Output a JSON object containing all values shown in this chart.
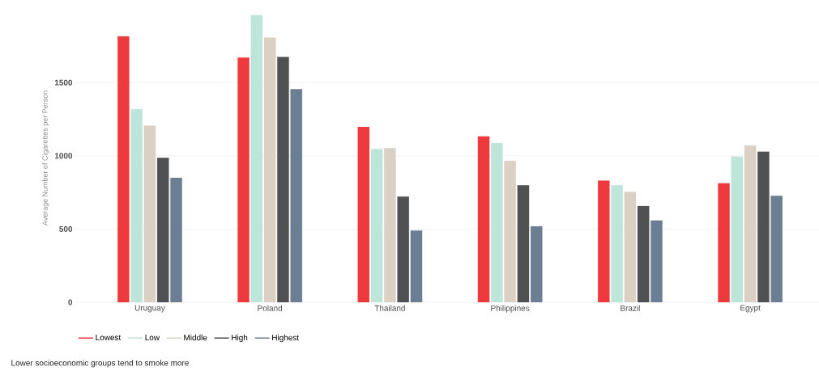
{
  "chart_data": {
    "type": "bar",
    "ylabel": "Average Number of Cigarettes per Person",
    "categories": [
      "Uruguay",
      "Poland",
      "Thailand",
      "Philippines",
      "Brazil",
      "Egypt"
    ],
    "series": [
      {
        "name": "Lowest",
        "color": "#ef3a3d",
        "values": [
          1815,
          1671,
          1197,
          1133,
          830,
          812
        ]
      },
      {
        "name": "Low",
        "color": "#bde5da",
        "values": [
          1319,
          1960,
          1047,
          1087,
          799,
          995
        ]
      },
      {
        "name": "Middle",
        "color": "#dad0c3",
        "values": [
          1205,
          1807,
          1052,
          966,
          753,
          1071
        ]
      },
      {
        "name": "High",
        "color": "#4f5153",
        "values": [
          986,
          1675,
          722,
          799,
          657,
          1028
        ]
      },
      {
        "name": "Highest",
        "color": "#6c7e93",
        "values": [
          850,
          1456,
          490,
          518,
          558,
          727
        ]
      }
    ],
    "ylim": [
      0,
      1970
    ],
    "yticks": [
      0,
      500,
      1000,
      1500
    ],
    "grid": "y",
    "legend": "bottom left",
    "annotations": [
      "Lower socioeconomic groups tend to smoke more"
    ]
  }
}
